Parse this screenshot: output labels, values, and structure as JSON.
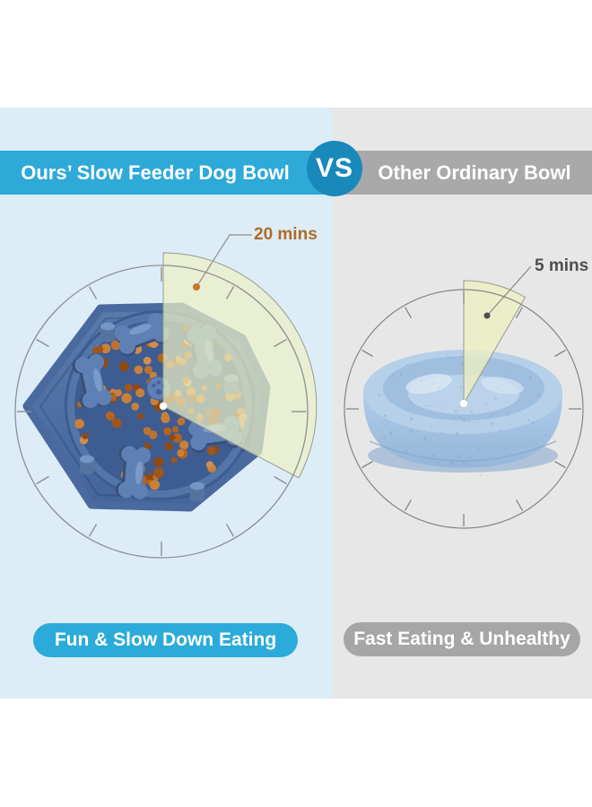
{
  "comparison": {
    "left": {
      "header": "Ours’ Slow Feeder Dog Bowl",
      "time_label": "20 mins",
      "minutes": 20,
      "badge": "Fun & Slow Down Eating",
      "panel_bg": "#DCEDF8",
      "accent": "#2EA9D8",
      "time_color": "#B06C28"
    },
    "right": {
      "header": "Other Ordinary Bowl",
      "time_label": "5 mins",
      "minutes": 5,
      "badge": "Fast Eating & Unhealthy",
      "panel_bg": "#E7E7E7",
      "accent": "#A9A9A9",
      "time_color": "#4E4E4E"
    },
    "vs_label": "VS",
    "vs_bg": "#1989BC",
    "clock": {
      "tick_count": 12,
      "left_wedge_degrees": 120,
      "right_wedge_degrees": 30
    }
  }
}
